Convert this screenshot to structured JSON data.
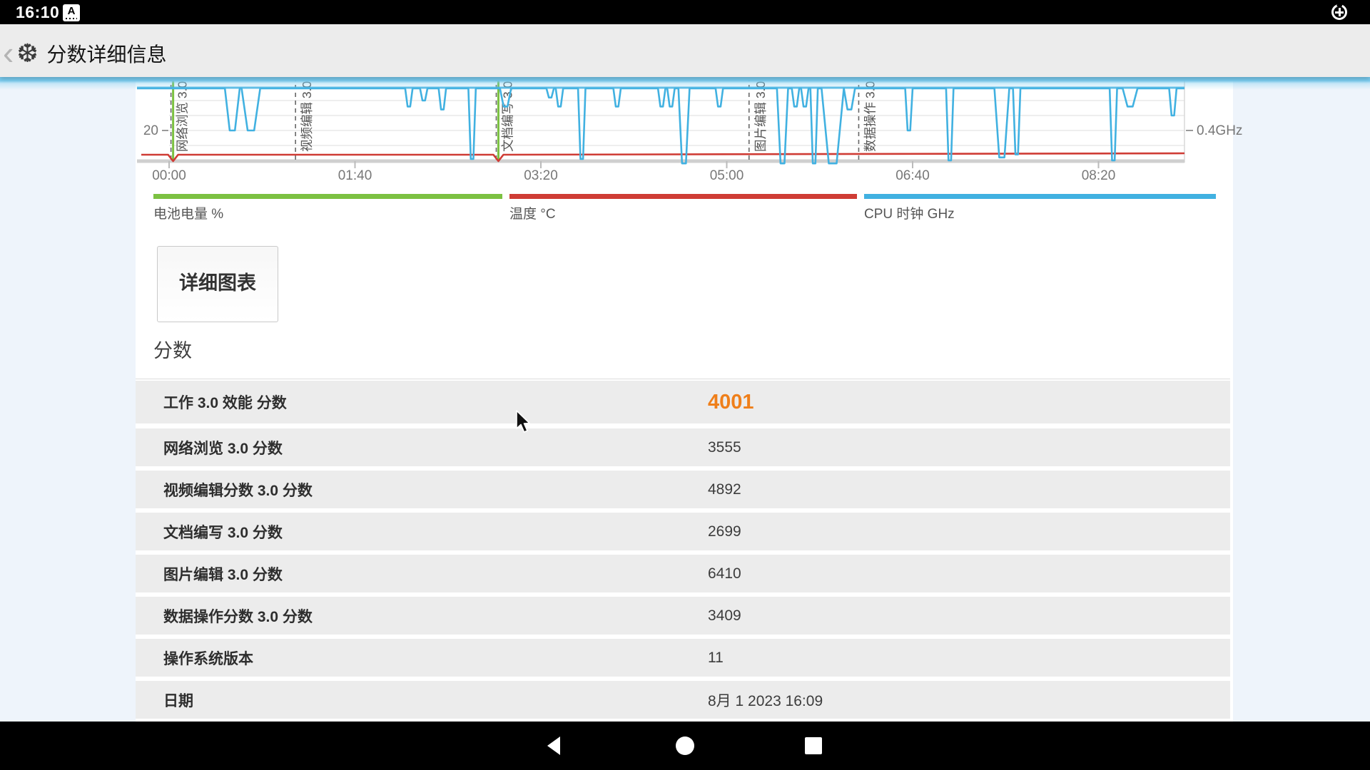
{
  "colors": {
    "accent_orange": "#ef7f1a",
    "battery_green": "#7cc142",
    "temp_red": "#cf3c35",
    "cpu_blue": "#41b1e1",
    "overscroll_glow": "#79ccf0"
  },
  "status_bar": {
    "time": "16:10",
    "keyboard_icon_letter": "A",
    "right_icon": "data-saver-icon"
  },
  "app_bar": {
    "back_glyph": "‹",
    "logo_glyph": "❆",
    "title": "分数详细信息"
  },
  "chart_data": {
    "type": "line",
    "title": "",
    "x_axis": {
      "tick_labels": [
        "00:00",
        "01:40",
        "03:20",
        "05:00",
        "06:40",
        "08:20"
      ],
      "tick_seconds": [
        0,
        100,
        200,
        300,
        400,
        500
      ]
    },
    "left_axis_tick": "20",
    "right_axis_tick": "0.4GHz",
    "note": "chart is scrolled/clipped at top; only the bottom band of the plot is visible",
    "workload_markers": [
      {
        "label": "网络浏览 3.0",
        "t_s": 1
      },
      {
        "label": "视频编辑 3.0",
        "t_s": 68
      },
      {
        "label": "文档编写 3.0",
        "t_s": 176
      },
      {
        "label": "图片编辑 3.0",
        "t_s": 312
      },
      {
        "label": "数据操作 3.0",
        "t_s": 371
      }
    ],
    "series": [
      {
        "name": "电池电量 %",
        "color": "#7cc142",
        "description": "battery level stays above visible range; vertical drop lines at workload boundaries",
        "drop_times_s": [
          1,
          176
        ]
      },
      {
        "name": "温度 °C",
        "color": "#cf3c35",
        "description": "nearly constant just above the time axis (~value 4 on left scale), brief dips at 0:01 and 2:56",
        "dip_times_s": [
          1,
          176
        ]
      },
      {
        "name": "CPU 时钟 GHz",
        "color": "#41b1e1",
        "description": "clipped at top of visible area (~0.68 GHz on visible scale) with downward frequency dips",
        "baseline_ghz": 0.68,
        "dips_t_ghz_halfwidth": [
          [
            34,
            0.4,
            4
          ],
          [
            44,
            0.4,
            5
          ],
          [
            129,
            0.56,
            2
          ],
          [
            137,
            0.6,
            2
          ],
          [
            147,
            0.54,
            2
          ],
          [
            163,
            0.21,
            2
          ],
          [
            181,
            0.56,
            3
          ],
          [
            205,
            0.62,
            2
          ],
          [
            210,
            0.56,
            2
          ],
          [
            222,
            0.21,
            2
          ],
          [
            241,
            0.56,
            2
          ],
          [
            265,
            0.56,
            2
          ],
          [
            270,
            0.56,
            2
          ],
          [
            277,
            0.18,
            3
          ],
          [
            296,
            0.56,
            2
          ],
          [
            330,
            0.18,
            3
          ],
          [
            337,
            0.56,
            2
          ],
          [
            342,
            0.56,
            2
          ],
          [
            347,
            0.18,
            2
          ],
          [
            357,
            0.18,
            6
          ],
          [
            366,
            0.54,
            3
          ],
          [
            398,
            0.4,
            2
          ],
          [
            420,
            0.2,
            2
          ],
          [
            448,
            0.22,
            4
          ],
          [
            456,
            0.24,
            2
          ],
          [
            508,
            0.2,
            2
          ],
          [
            517,
            0.56,
            4
          ],
          [
            540,
            0.5,
            2
          ]
        ]
      }
    ],
    "legend": [
      {
        "label": "电池电量 %",
        "color": "#7cc142"
      },
      {
        "label": "温度 °C",
        "color": "#cf3c35"
      },
      {
        "label": "CPU 时钟 GHz",
        "color": "#41b1e1"
      }
    ],
    "grid": true,
    "legend_position": "bottom"
  },
  "detail_button_label": "详细图表",
  "section_title": "分数",
  "score_table": {
    "rows": [
      {
        "label": "工作 3.0 效能 分数",
        "value": "4001",
        "highlight": true
      },
      {
        "label": "网络浏览 3.0 分数",
        "value": "3555",
        "highlight": false
      },
      {
        "label": "视频编辑分数 3.0 分数",
        "value": "4892",
        "highlight": false
      },
      {
        "label": "文档编写 3.0 分数",
        "value": "2699",
        "highlight": false
      },
      {
        "label": "图片编辑 3.0 分数",
        "value": "6410",
        "highlight": false
      },
      {
        "label": "数据操作分数 3.0 分数",
        "value": "3409",
        "highlight": false
      },
      {
        "label": "操作系统版本",
        "value": "11",
        "highlight": false
      },
      {
        "label": "日期",
        "value": "8月 1 2023 16:09",
        "highlight": false
      }
    ]
  },
  "nav_bar": {
    "buttons": [
      "back",
      "home",
      "recents"
    ]
  }
}
